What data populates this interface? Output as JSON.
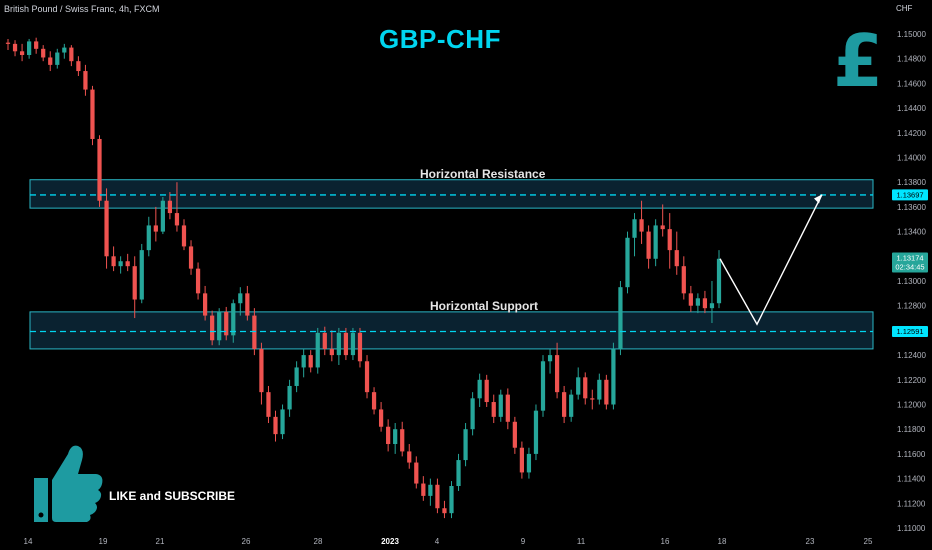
{
  "header": {
    "symbol_title": "British Pound / Swiss Franc, 4h, FXCM",
    "currency": "CHF"
  },
  "title": "GBP-CHF",
  "annotations": {
    "resistance_label": "Horizontal Resistance",
    "support_label": "Horizontal Support",
    "subscribe_label": "LIKE and SUBSCRIBE"
  },
  "icons": {
    "pound": "pound-sign-icon",
    "thumb": "thumbs-up-icon"
  },
  "colors": {
    "background": "#000000",
    "accent": "#00d5ef",
    "zone_fill": "#0a2230",
    "zone_border": "#2ab7c6",
    "bull": "#26a69a",
    "bear": "#ef5350",
    "axis_text": "#b2b5be",
    "price_box_resistance": "#00e5ff",
    "price_box_support": "#00e5ff",
    "price_box_last": "#26a69a",
    "icon_teal": "#1e9ba1"
  },
  "chart_data": {
    "type": "candlestick",
    "title": "GBP-CHF",
    "symbol": "British Pound / Swiss Franc, 4h, FXCM",
    "ylim": [
      1.11,
      1.1512
    ],
    "y_ticks": [
      "1.15000",
      "1.14800",
      "1.14600",
      "1.14400",
      "1.14200",
      "1.14000",
      "1.13800",
      "1.13600",
      "1.13400",
      "1.13200",
      "1.13000",
      "1.12800",
      "1.12600",
      "1.12400",
      "1.12200",
      "1.12000",
      "1.11800",
      "1.11600",
      "1.11400",
      "1.11200",
      "1.11000"
    ],
    "x_ticks": [
      "14",
      "19",
      "21",
      "26",
      "28",
      "2023",
      "4",
      "9",
      "11",
      "16",
      "18",
      "23",
      "25"
    ],
    "price_labels": {
      "resistance": "1.13697",
      "support": "1.12591",
      "last_price": "1.13174",
      "countdown": "02:34:45"
    },
    "resistance_zone": [
      1.1359,
      1.1382
    ],
    "support_zone": [
      1.1245,
      1.1275
    ],
    "resistance_line": 1.13697,
    "support_line": 1.12591,
    "projection": [
      {
        "x": "18",
        "y": 1.1318
      },
      {
        "x": "22",
        "y": 1.1265
      },
      {
        "x": "23",
        "y": 1.137
      }
    ],
    "ohlc": [
      [
        1.1493,
        1.1496,
        1.1487,
        1.1492
      ],
      [
        1.1492,
        1.1495,
        1.1482,
        1.1486
      ],
      [
        1.1486,
        1.1492,
        1.1478,
        1.1483
      ],
      [
        1.1483,
        1.1496,
        1.148,
        1.1494
      ],
      [
        1.1494,
        1.1497,
        1.1484,
        1.1488
      ],
      [
        1.1488,
        1.1491,
        1.1478,
        1.1481
      ],
      [
        1.1481,
        1.1486,
        1.147,
        1.1475
      ],
      [
        1.1475,
        1.1488,
        1.1472,
        1.1485
      ],
      [
        1.1485,
        1.1492,
        1.148,
        1.1489
      ],
      [
        1.1489,
        1.1491,
        1.1474,
        1.1478
      ],
      [
        1.1478,
        1.1482,
        1.1466,
        1.147
      ],
      [
        1.147,
        1.1475,
        1.145,
        1.1455
      ],
      [
        1.1455,
        1.1458,
        1.141,
        1.1415
      ],
      [
        1.1415,
        1.1418,
        1.136,
        1.1365
      ],
      [
        1.1365,
        1.1375,
        1.131,
        1.132
      ],
      [
        1.132,
        1.1328,
        1.1308,
        1.1312
      ],
      [
        1.1312,
        1.132,
        1.1306,
        1.1316
      ],
      [
        1.1316,
        1.1322,
        1.1308,
        1.1312
      ],
      [
        1.1312,
        1.132,
        1.127,
        1.1285
      ],
      [
        1.1285,
        1.133,
        1.1282,
        1.1325
      ],
      [
        1.1325,
        1.1352,
        1.132,
        1.1345
      ],
      [
        1.1345,
        1.136,
        1.1332,
        1.134
      ],
      [
        1.134,
        1.1368,
        1.1338,
        1.1365
      ],
      [
        1.1365,
        1.1372,
        1.135,
        1.1355
      ],
      [
        1.1355,
        1.138,
        1.134,
        1.1345
      ],
      [
        1.1345,
        1.135,
        1.1325,
        1.1328
      ],
      [
        1.1328,
        1.1333,
        1.1305,
        1.131
      ],
      [
        1.131,
        1.1315,
        1.1285,
        1.129
      ],
      [
        1.129,
        1.1296,
        1.1268,
        1.1272
      ],
      [
        1.1272,
        1.1276,
        1.1248,
        1.1252
      ],
      [
        1.1252,
        1.1278,
        1.1248,
        1.1275
      ],
      [
        1.1275,
        1.1279,
        1.1252,
        1.1256
      ],
      [
        1.1256,
        1.1285,
        1.125,
        1.1282
      ],
      [
        1.1282,
        1.1295,
        1.1272,
        1.129
      ],
      [
        1.129,
        1.1296,
        1.1268,
        1.1272
      ],
      [
        1.1272,
        1.1278,
        1.124,
        1.1245
      ],
      [
        1.1245,
        1.125,
        1.12,
        1.121
      ],
      [
        1.121,
        1.1215,
        1.1185,
        1.119
      ],
      [
        1.119,
        1.1195,
        1.117,
        1.1176
      ],
      [
        1.1176,
        1.12,
        1.1172,
        1.1196
      ],
      [
        1.1196,
        1.122,
        1.119,
        1.1215
      ],
      [
        1.1215,
        1.1235,
        1.121,
        1.123
      ],
      [
        1.123,
        1.1245,
        1.1222,
        1.124
      ],
      [
        1.124,
        1.1244,
        1.1226,
        1.123
      ],
      [
        1.123,
        1.1262,
        1.1225,
        1.1258
      ],
      [
        1.1258,
        1.1263,
        1.124,
        1.1245
      ],
      [
        1.1245,
        1.126,
        1.1235,
        1.124
      ],
      [
        1.124,
        1.1262,
        1.1232,
        1.1258
      ],
      [
        1.1258,
        1.1262,
        1.1236,
        1.124
      ],
      [
        1.124,
        1.1262,
        1.1236,
        1.1258
      ],
      [
        1.1258,
        1.1262,
        1.123,
        1.1235
      ],
      [
        1.1235,
        1.124,
        1.1205,
        1.121
      ],
      [
        1.121,
        1.1214,
        1.1192,
        1.1196
      ],
      [
        1.1196,
        1.1202,
        1.1178,
        1.1182
      ],
      [
        1.1182,
        1.1188,
        1.1162,
        1.1168
      ],
      [
        1.1168,
        1.1185,
        1.116,
        1.118
      ],
      [
        1.118,
        1.1186,
        1.1158,
        1.1162
      ],
      [
        1.1162,
        1.1168,
        1.1148,
        1.1153
      ],
      [
        1.1153,
        1.1158,
        1.1132,
        1.1136
      ],
      [
        1.1136,
        1.1142,
        1.1122,
        1.1126
      ],
      [
        1.1126,
        1.114,
        1.1118,
        1.1135
      ],
      [
        1.1135,
        1.114,
        1.1112,
        1.1116
      ],
      [
        1.1116,
        1.1122,
        1.1108,
        1.1112
      ],
      [
        1.1112,
        1.1138,
        1.1108,
        1.1134
      ],
      [
        1.1134,
        1.116,
        1.113,
        1.1155
      ],
      [
        1.1155,
        1.1185,
        1.115,
        1.118
      ],
      [
        1.118,
        1.121,
        1.1175,
        1.1205
      ],
      [
        1.1205,
        1.1225,
        1.1198,
        1.122
      ],
      [
        1.122,
        1.1224,
        1.1198,
        1.1202
      ],
      [
        1.1202,
        1.1208,
        1.1185,
        1.119
      ],
      [
        1.119,
        1.1212,
        1.1186,
        1.1208
      ],
      [
        1.1208,
        1.1213,
        1.118,
        1.1186
      ],
      [
        1.1186,
        1.119,
        1.116,
        1.1165
      ],
      [
        1.1165,
        1.117,
        1.114,
        1.1145
      ],
      [
        1.1145,
        1.1165,
        1.114,
        1.116
      ],
      [
        1.116,
        1.12,
        1.1155,
        1.1195
      ],
      [
        1.1195,
        1.124,
        1.119,
        1.1235
      ],
      [
        1.1235,
        1.1245,
        1.1225,
        1.124
      ],
      [
        1.124,
        1.125,
        1.1205,
        1.121
      ],
      [
        1.121,
        1.1215,
        1.1185,
        1.119
      ],
      [
        1.119,
        1.1212,
        1.1186,
        1.1208
      ],
      [
        1.1208,
        1.123,
        1.1204,
        1.1222
      ],
      [
        1.1222,
        1.1226,
        1.12,
        1.1205
      ],
      [
        1.1205,
        1.1212,
        1.1196,
        1.1204
      ],
      [
        1.1204,
        1.1225,
        1.12,
        1.122
      ],
      [
        1.122,
        1.1224,
        1.1196,
        1.12
      ],
      [
        1.12,
        1.125,
        1.1196,
        1.1245
      ],
      [
        1.1245,
        1.13,
        1.124,
        1.1295
      ],
      [
        1.1295,
        1.134,
        1.129,
        1.1335
      ],
      [
        1.1335,
        1.1355,
        1.132,
        1.135
      ],
      [
        1.135,
        1.1365,
        1.133,
        1.134
      ],
      [
        1.134,
        1.1345,
        1.131,
        1.1318
      ],
      [
        1.1318,
        1.135,
        1.1312,
        1.1345
      ],
      [
        1.1345,
        1.1362,
        1.1336,
        1.1342
      ],
      [
        1.1342,
        1.1355,
        1.131,
        1.1325
      ],
      [
        1.1325,
        1.134,
        1.1305,
        1.1312
      ],
      [
        1.1312,
        1.132,
        1.1285,
        1.129
      ],
      [
        1.129,
        1.1296,
        1.1275,
        1.128
      ],
      [
        1.128,
        1.129,
        1.1274,
        1.1286
      ],
      [
        1.1286,
        1.1292,
        1.1274,
        1.1278
      ],
      [
        1.1278,
        1.13,
        1.1266,
        1.1282
      ],
      [
        1.1282,
        1.1325,
        1.1278,
        1.1318
      ]
    ],
    "y_label": "CHF",
    "legend": "none",
    "grid": false
  }
}
